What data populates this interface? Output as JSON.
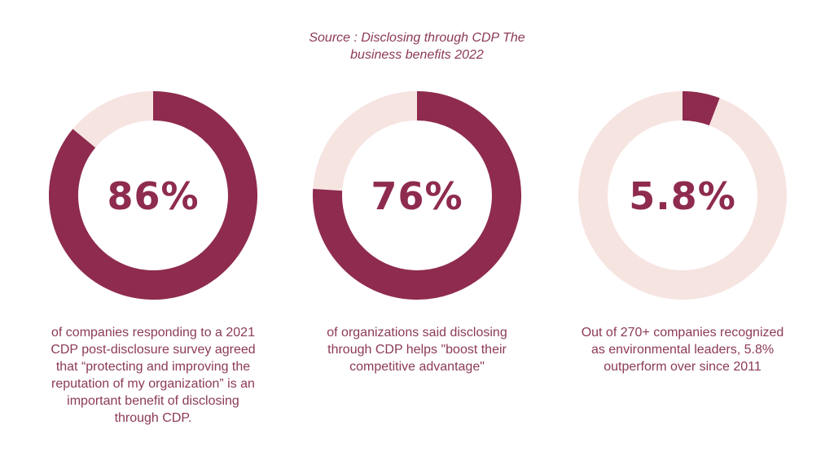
{
  "source": {
    "line1": "Source : Disclosing through CDP The",
    "line2": "business benefits 2022"
  },
  "colors": {
    "filled": "#8e2b4f",
    "track": "#f6e4e1",
    "text": "#8c3a55"
  },
  "chart_data": [
    {
      "type": "pie",
      "style": "donut",
      "value_percent": 86,
      "label": "86%",
      "caption": "of companies responding to a 2021 CDP post-disclosure survey agreed that “protecting and improving the reputation of my organization” is an important benefit of disclosing through CDP."
    },
    {
      "type": "pie",
      "style": "donut",
      "value_percent": 76,
      "label": "76%",
      "caption": "of organizations said disclosing through CDP helps \"boost their competitive advantage\""
    },
    {
      "type": "pie",
      "style": "donut",
      "value_percent": 5.8,
      "label": "5.8%",
      "caption": "Out of 270+ companies recognized as environmental leaders, 5.8% outperform over since 2011"
    }
  ]
}
